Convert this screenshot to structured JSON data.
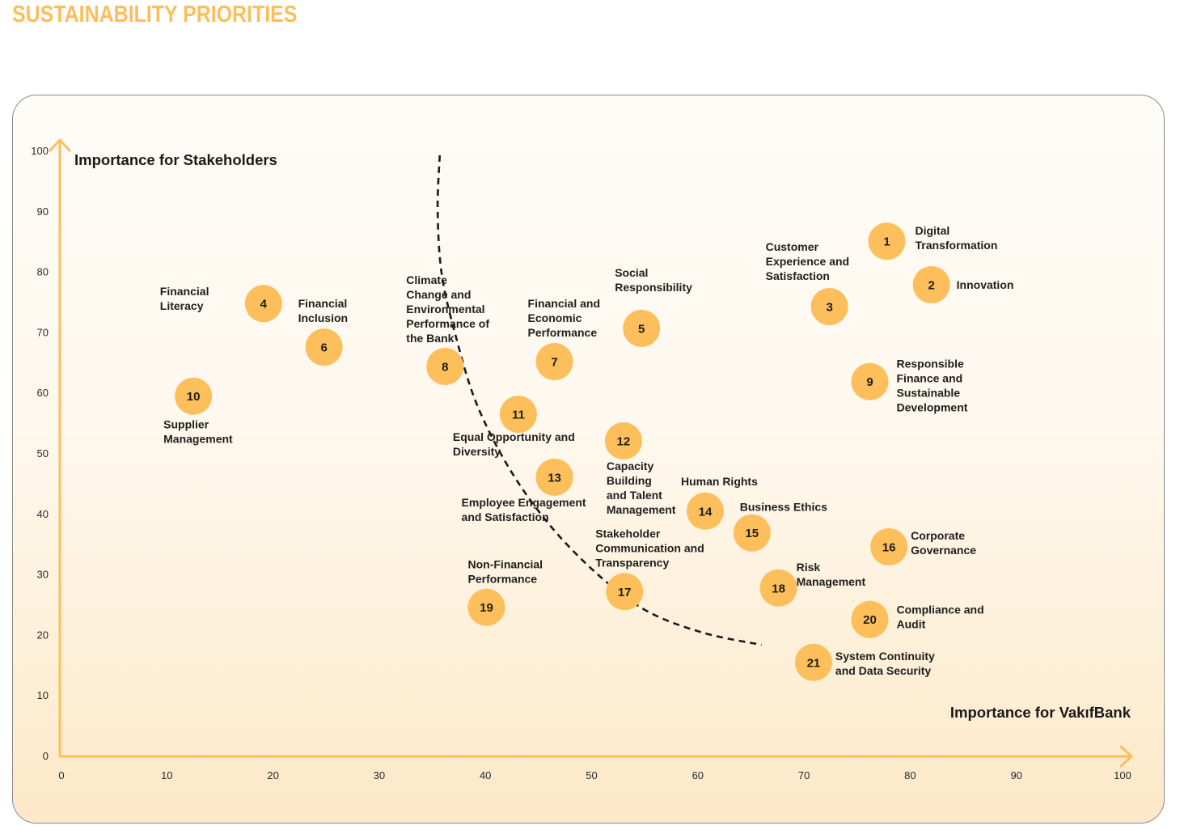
{
  "page": {
    "title": "SUSTAINABILITY PRIORITIES"
  },
  "colors": {
    "accent": "#FDBE5A",
    "bubble": "#FCBF5B",
    "text": "#1E1E1E",
    "curve": "#1A1A1A"
  },
  "chart_data": {
    "type": "scatter",
    "title": "SUSTAINABILITY PRIORITIES",
    "xlabel": "Importance for VakıfBank",
    "ylabel": "Importance for Stakeholders",
    "xlim": [
      0,
      100
    ],
    "ylim": [
      0,
      100
    ],
    "grid": false,
    "legend": "none",
    "x_ticks": [
      "0",
      "10",
      "20",
      "30",
      "40",
      "50",
      "60",
      "70",
      "80",
      "90",
      "100"
    ],
    "y_ticks": [
      "0",
      "10",
      "20",
      "30",
      "40",
      "50",
      "60",
      "70",
      "80",
      "90",
      "100"
    ],
    "points": [
      {
        "id": "1",
        "x": 77.8,
        "y": 85.0,
        "label": "Digital Transformation",
        "label_lines": [
          "Digital",
          "Transformation"
        ]
      },
      {
        "id": "2",
        "x": 82.0,
        "y": 77.8,
        "label": "Innovation",
        "label_lines": [
          "Innovation"
        ]
      },
      {
        "id": "3",
        "x": 72.4,
        "y": 74.2,
        "label": "Customer Experience and Satisfaction",
        "label_lines": [
          "Customer",
          "Experience and",
          "Satisfaction"
        ]
      },
      {
        "id": "4",
        "x": 19.1,
        "y": 74.7,
        "label": "Financial Literacy",
        "label_lines": [
          "Financial",
          "Literacy"
        ]
      },
      {
        "id": "5",
        "x": 54.7,
        "y": 70.6,
        "label": "Social Responsibility",
        "label_lines": [
          "Social",
          "Responsibility"
        ]
      },
      {
        "id": "6",
        "x": 24.8,
        "y": 67.5,
        "label": "Financial Inclusion",
        "label_lines": [
          "Financial",
          "Inclusion"
        ]
      },
      {
        "id": "7",
        "x": 46.5,
        "y": 65.1,
        "label": "Financial and Economic Performance",
        "label_lines": [
          "Financial and",
          "Economic",
          "Performance"
        ]
      },
      {
        "id": "8",
        "x": 36.2,
        "y": 64.3,
        "label": "Climate Change and Environmental Performance of the Bank",
        "label_lines": [
          "Climate",
          "Change and",
          "Environmental",
          "Performance of",
          "the Bank"
        ]
      },
      {
        "id": "9",
        "x": 76.2,
        "y": 61.8,
        "label": "Responsible Finance and Sustainable Development",
        "label_lines": [
          "Responsible",
          "Finance and",
          "Sustainable",
          "Development"
        ]
      },
      {
        "id": "10",
        "x": 12.5,
        "y": 59.4,
        "label": "Supplier Management",
        "label_lines": [
          "Supplier",
          "Management"
        ]
      },
      {
        "id": "11",
        "x": 43.1,
        "y": 56.4,
        "label": "Equal Opportunity and Diversity",
        "label_lines": [
          "Equal Opportunity and",
          "Diversity"
        ]
      },
      {
        "id": "12",
        "x": 53.0,
        "y": 52.0,
        "label": "Capacity Building and Talent Management",
        "label_lines": [
          "Capacity",
          "Building",
          "and Talent",
          "Management"
        ]
      },
      {
        "id": "13",
        "x": 46.5,
        "y": 46.0,
        "label": "Employee Engagement and Satisfaction",
        "label_lines": [
          "Employee Engagement",
          "and Satisfaction"
        ]
      },
      {
        "id": "14",
        "x": 60.7,
        "y": 40.4,
        "label": "Human Rights",
        "label_lines": [
          "Human Rights"
        ]
      },
      {
        "id": "15",
        "x": 65.1,
        "y": 36.8,
        "label": "Business Ethics",
        "label_lines": [
          "Business Ethics"
        ]
      },
      {
        "id": "16",
        "x": 78.0,
        "y": 34.5,
        "label": "Corporate Governance",
        "label_lines": [
          "Corporate",
          "Governance"
        ]
      },
      {
        "id": "17",
        "x": 53.1,
        "y": 27.1,
        "label": "Stakeholder Communication and Transparency",
        "label_lines": [
          "Stakeholder",
          "Communication and",
          "Transparency"
        ]
      },
      {
        "id": "18",
        "x": 67.6,
        "y": 27.7,
        "label": "Risk Management",
        "label_lines": [
          "Risk",
          "Management"
        ]
      },
      {
        "id": "19",
        "x": 40.1,
        "y": 24.5,
        "label": "Non-Financial Performance",
        "label_lines": [
          "Non-Financial",
          "Performance"
        ]
      },
      {
        "id": "20",
        "x": 76.2,
        "y": 22.5,
        "label": "Compliance and Audit",
        "label_lines": [
          "Compliance and",
          "Audit"
        ]
      },
      {
        "id": "21",
        "x": 70.9,
        "y": 15.4,
        "label": "System Continuity and Data Security",
        "label_lines": [
          "System Continuity",
          "and Data Security"
        ]
      }
    ],
    "threshold_curve": {
      "style": "dashed",
      "points": [
        [
          35.7,
          99.2
        ],
        [
          35.5,
          90.1
        ],
        [
          35.9,
          79.4
        ],
        [
          37.3,
          68.7
        ],
        [
          39.2,
          58.0
        ],
        [
          42.3,
          47.3
        ],
        [
          46.1,
          38.0
        ],
        [
          50.6,
          29.9
        ],
        [
          55.2,
          23.9
        ],
        [
          60.5,
          20.3
        ],
        [
          66.0,
          18.3
        ]
      ]
    }
  }
}
